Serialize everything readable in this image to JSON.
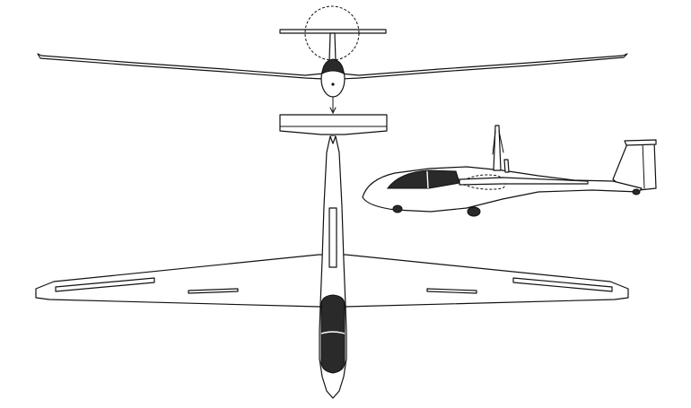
{
  "figure": {
    "views": [
      {
        "id": "front-view"
      },
      {
        "id": "side-view"
      },
      {
        "id": "top-view"
      }
    ],
    "ink_color": "#111111",
    "canopy_color": "#2a2a2a",
    "background": "#ffffff"
  }
}
